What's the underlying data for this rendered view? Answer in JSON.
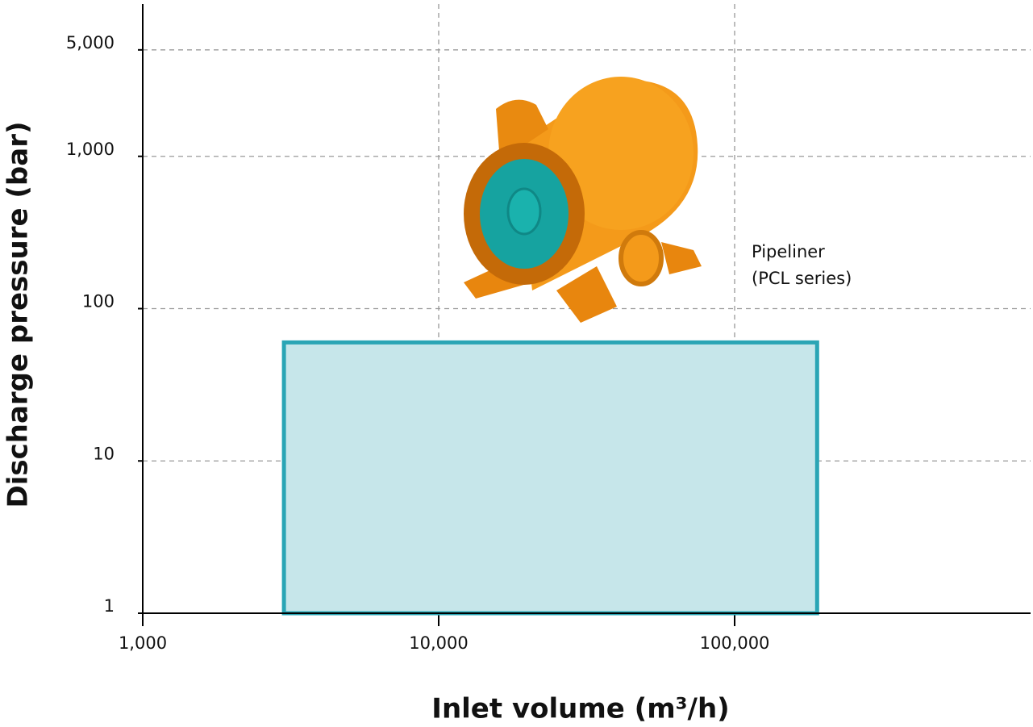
{
  "chart_data": {
    "type": "range",
    "x_label": "Inlet volume (m³/h)",
    "y_label": "Discharge pressure (bar)",
    "annotation": [
      "Pipeliner",
      "(PCL series)"
    ],
    "region": {
      "x": [
        3000,
        190000
      ],
      "y": [
        1,
        60
      ],
      "fill": "#c6e6ea",
      "stroke": "#2aa5b5"
    },
    "xscale": "log",
    "yscale": "log",
    "xlim": [
      1000,
      1000000
    ],
    "ylim": [
      1,
      10000
    ],
    "xticks": [
      {
        "value": 1000,
        "label": "1,000"
      },
      {
        "value": 10000,
        "label": "10,000"
      },
      {
        "value": 100000,
        "label": "100,000"
      }
    ],
    "yticks": [
      1,
      10,
      100,
      {
        "value": 1000,
        "label": "1,000"
      },
      {
        "value": 5000,
        "label": "5,000"
      }
    ],
    "grid": true
  }
}
